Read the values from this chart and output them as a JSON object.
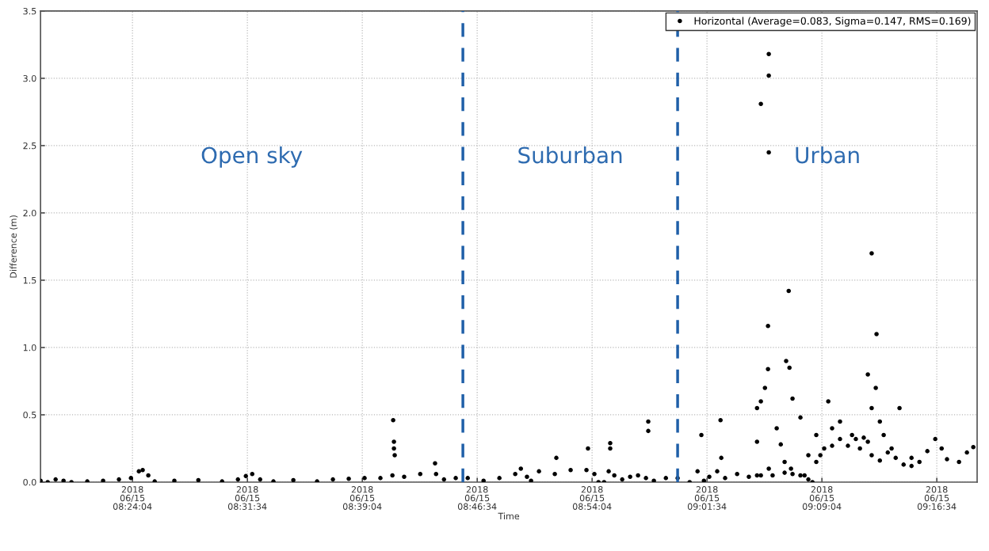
{
  "chart_data": {
    "type": "scatter",
    "xlabel": "Time",
    "ylabel": "Difference (m)",
    "xlim": [
      "2018-06-15T08:18:04",
      "2018-06-15T09:19:12"
    ],
    "ylim": [
      0,
      3.5
    ],
    "xticks": [
      {
        "value": "2018-06-15T08:24:04",
        "label": "2018\n06/15\n08:24:04"
      },
      {
        "value": "2018-06-15T08:31:34",
        "label": "2018\n06/15\n08:31:34"
      },
      {
        "value": "2018-06-15T08:39:04",
        "label": "2018\n06/15\n08:39:04"
      },
      {
        "value": "2018-06-15T08:46:34",
        "label": "2018\n06/15\n08:46:34"
      },
      {
        "value": "2018-06-15T08:54:04",
        "label": "2018\n06/15\n08:54:04"
      },
      {
        "value": "2018-06-15T09:01:34",
        "label": "2018\n06/15\n09:01:34"
      },
      {
        "value": "2018-06-15T09:09:04",
        "label": "2018\n06/15\n09:09:04"
      },
      {
        "value": "2018-06-15T09:16:34",
        "label": "2018\n06/15\n09:16:34"
      }
    ],
    "yticks": [
      {
        "value": 0,
        "label": "0.0"
      },
      {
        "value": 0.5,
        "label": "0.5"
      },
      {
        "value": 1.0,
        "label": "1.0"
      },
      {
        "value": 1.5,
        "label": "1.5"
      },
      {
        "value": 2.0,
        "label": "2.0"
      },
      {
        "value": 2.5,
        "label": "2.5"
      },
      {
        "value": 3.0,
        "label": "3.0"
      },
      {
        "value": 3.5,
        "label": "3.5"
      }
    ],
    "grid": true,
    "legend": "top right",
    "marker": "circle",
    "series": [
      {
        "name": "Horizontal (Average=0.083, Sigma=0.147, RMS=0.169)",
        "color": "#000000",
        "x": [
          "2018-06-15T08:18:04",
          "2018-06-15T08:18:32",
          "2018-06-15T08:19:03",
          "2018-06-15T08:19:34",
          "2018-06-15T08:20:05",
          "2018-06-15T08:21:07",
          "2018-06-15T08:22:09",
          "2018-06-15T08:23:11",
          "2018-06-15T08:23:58",
          "2018-06-15T08:24:29",
          "2018-06-15T08:24:44",
          "2018-06-15T08:25:06",
          "2018-06-15T08:25:31",
          "2018-06-15T08:26:48",
          "2018-06-15T08:28:22",
          "2018-06-15T08:29:55",
          "2018-06-15T08:30:57",
          "2018-06-15T08:31:28",
          "2018-06-15T08:31:53",
          "2018-06-15T08:32:24",
          "2018-06-15T08:33:16",
          "2018-06-15T08:34:34",
          "2018-06-15T08:36:07",
          "2018-06-15T08:37:09",
          "2018-06-15T08:38:11",
          "2018-06-15T08:39:13",
          "2018-06-15T08:40:15",
          "2018-06-15T08:41:02",
          "2018-06-15T08:41:48",
          "2018-06-15T08:42:51",
          "2018-06-15T08:43:53",
          "2018-06-15T08:44:24",
          "2018-06-15T08:45:10",
          "2018-06-15T08:45:57",
          "2018-06-15T08:46:59",
          "2018-06-15T08:48:01",
          "2018-06-15T08:49:03",
          "2018-06-15T08:49:25",
          "2018-06-15T08:49:49",
          "2018-06-15T08:50:05",
          "2018-06-15T08:50:36",
          "2018-06-15T08:51:38",
          "2018-06-15T08:52:40",
          "2018-06-15T08:53:42",
          "2018-06-15T08:54:13",
          "2018-06-15T08:54:29",
          "2018-06-15T08:54:51",
          "2018-06-15T08:55:09",
          "2018-06-15T08:55:31",
          "2018-06-15T08:56:02",
          "2018-06-15T08:56:33",
          "2018-06-15T08:57:04",
          "2018-06-15T08:57:35",
          "2018-06-15T08:58:06",
          "2018-06-15T08:58:53",
          "2018-06-15T08:59:39",
          "2018-06-15T09:00:26",
          "2018-06-15T09:00:57",
          "2018-06-15T09:01:22",
          "2018-06-15T09:01:43",
          "2018-06-15T09:02:14",
          "2018-06-15T09:02:45",
          "2018-06-15T09:03:32",
          "2018-06-15T09:04:18",
          "2018-06-15T09:04:50",
          "2018-06-15T09:05:05",
          "2018-06-15T09:05:51",
          "2018-06-15T09:06:38",
          "2018-06-15T09:07:09",
          "2018-06-15T09:07:40",
          "2018-06-15T09:08:11",
          "2018-06-15T09:08:27",
          "2018-06-15T09:08:42",
          "2018-06-15T09:09:13",
          "2018-06-15T09:09:44",
          "2018-06-15T09:10:15",
          "2018-06-15T09:10:46",
          "2018-06-15T09:11:17",
          "2018-06-15T09:11:48",
          "2018-06-15T09:12:04",
          "2018-06-15T09:12:19",
          "2018-06-15T09:12:51",
          "2018-06-15T09:13:22",
          "2018-06-15T09:13:53",
          "2018-06-15T09:14:24",
          "2018-06-15T09:14:55",
          "2018-06-15T09:15:26",
          "2018-06-15T09:15:57",
          "2018-06-15T09:16:28",
          "2018-06-15T09:16:53",
          "2018-06-15T09:17:14",
          "2018-06-15T09:18:01",
          "2018-06-15T09:18:32",
          "2018-06-15T09:18:57",
          "2018-06-15T08:41:05",
          "2018-06-15T08:41:08",
          "2018-06-15T08:41:08",
          "2018-06-15T08:41:11",
          "2018-06-15T08:43:49",
          "2018-06-15T08:53:48",
          "2018-06-15T08:55:15",
          "2018-06-15T08:55:15",
          "2018-06-15T08:57:44",
          "2018-06-15T08:57:44",
          "2018-06-15T08:51:44",
          "2018-06-15T09:01:12",
          "2018-06-15T09:02:27",
          "2018-06-15T09:02:30",
          "2018-06-15T09:05:05",
          "2018-06-15T09:05:36",
          "2018-06-15T09:05:36",
          "2018-06-15T09:05:36",
          "2018-06-15T09:05:33",
          "2018-06-15T09:06:54",
          "2018-06-15T09:06:57",
          "2018-06-15T09:06:44",
          "2018-06-15T09:05:33",
          "2018-06-15T09:05:05",
          "2018-06-15T09:04:50",
          "2018-06-15T09:05:21",
          "2018-06-15T09:06:07",
          "2018-06-15T09:06:23",
          "2018-06-15T09:07:09",
          "2018-06-15T09:07:40",
          "2018-06-15T09:08:11",
          "2018-06-15T09:09:29",
          "2018-06-15T09:12:19",
          "2018-06-15T09:12:38",
          "2018-06-15T09:12:04",
          "2018-06-15T09:12:19",
          "2018-06-15T09:12:35",
          "2018-06-15T09:14:08",
          "2018-06-15T09:12:51",
          "2018-06-15T09:13:06",
          "2018-06-15T09:08:42",
          "2018-06-15T09:09:44",
          "2018-06-15T09:11:02",
          "2018-06-15T09:13:37",
          "2018-06-15T09:14:55",
          "2018-06-15T09:06:38",
          "2018-06-15T09:07:03",
          "2018-06-15T09:05:36",
          "2018-06-15T09:04:50",
          "2018-06-15T09:07:56",
          "2018-06-15T09:08:58",
          "2018-06-15T09:10:15",
          "2018-06-15T09:11:33"
        ],
        "values": [
          0.01,
          0.0,
          0.02,
          0.01,
          0.0,
          0.005,
          0.01,
          0.02,
          0.03,
          0.08,
          0.09,
          0.05,
          0.005,
          0.01,
          0.015,
          0.005,
          0.02,
          0.045,
          0.06,
          0.02,
          0.005,
          0.015,
          0.005,
          0.02,
          0.025,
          0.03,
          0.03,
          0.05,
          0.04,
          0.06,
          0.06,
          0.02,
          0.03,
          0.03,
          0.01,
          0.03,
          0.06,
          0.1,
          0.04,
          0.01,
          0.08,
          0.06,
          0.09,
          0.09,
          0.06,
          0.0,
          0.0,
          0.08,
          0.05,
          0.02,
          0.04,
          0.05,
          0.03,
          0.01,
          0.03,
          0.03,
          0.0,
          0.08,
          0.01,
          0.04,
          0.08,
          0.03,
          0.06,
          0.04,
          0.05,
          0.05,
          0.05,
          0.07,
          0.06,
          0.05,
          0.02,
          0.0,
          0.15,
          0.25,
          0.27,
          0.32,
          0.27,
          0.32,
          0.33,
          0.3,
          0.2,
          0.16,
          0.22,
          0.18,
          0.13,
          0.12,
          0.15,
          0.23,
          0.32,
          0.25,
          0.17,
          0.15,
          0.22,
          0.26,
          0.46,
          0.3,
          0.25,
          0.2,
          0.14,
          0.25,
          0.29,
          0.25,
          0.45,
          0.38,
          0.18,
          0.35,
          0.46,
          0.18,
          2.81,
          3.18,
          3.02,
          2.45,
          1.16,
          1.42,
          0.85,
          0.9,
          0.84,
          0.6,
          0.55,
          0.7,
          0.4,
          0.28,
          0.62,
          0.48,
          0.2,
          0.6,
          1.7,
          1.1,
          0.8,
          0.55,
          0.7,
          0.55,
          0.45,
          0.35,
          0.35,
          0.4,
          0.35,
          0.25,
          0.18,
          0.15,
          0.1,
          0.1,
          0.3,
          0.05,
          0.2,
          0.45,
          0.25
        ]
      }
    ],
    "ref_lines": [
      {
        "axis": "x",
        "value": "2018-06-15T08:45:38",
        "color": "#1f5fa8",
        "line_style": "dashed"
      },
      {
        "axis": "x",
        "value": "2018-06-15T08:59:39",
        "color": "#1f5fa8",
        "line_style": "dashed"
      }
    ],
    "annotations": [
      "Open sky",
      "Suburban",
      "Urban"
    ]
  }
}
